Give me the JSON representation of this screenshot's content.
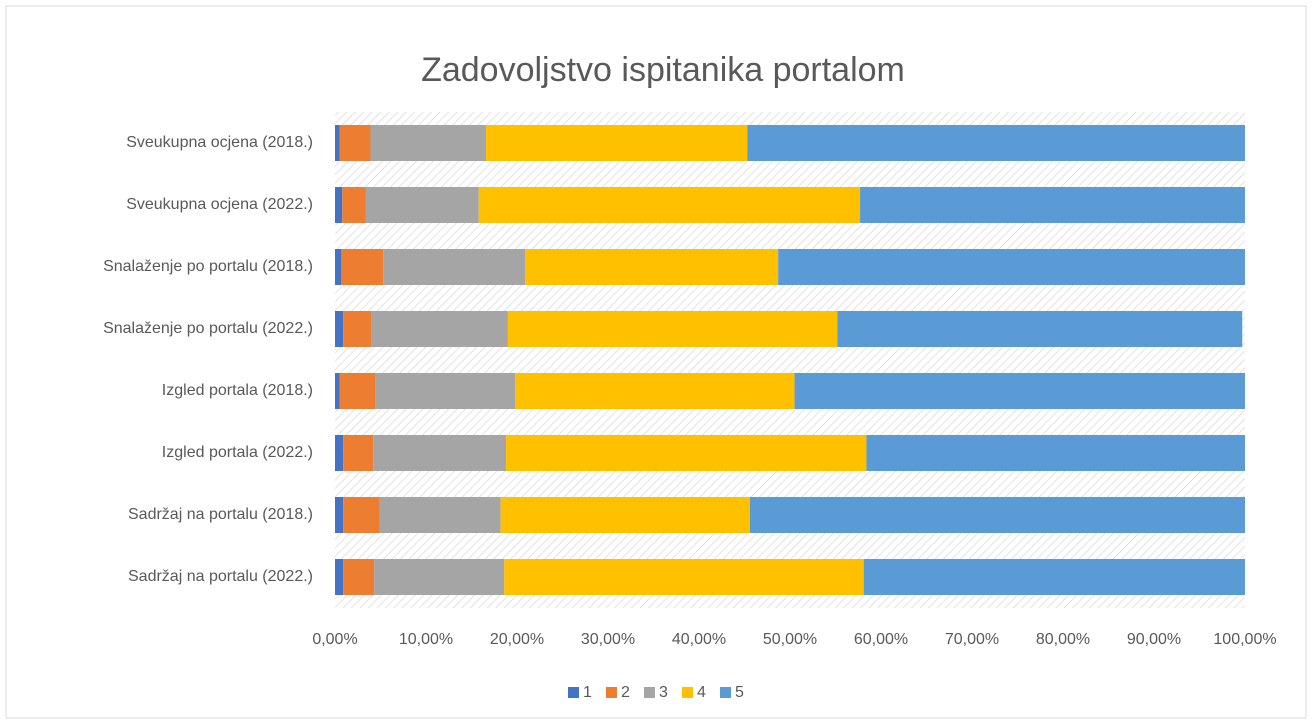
{
  "chart_data": {
    "type": "stacked-barh",
    "title": "Zadovoljstvo ispitanika portalom",
    "categories": [
      "Sveukupna ocjena (2018.)",
      "Sveukupna ocjena (2022.)",
      "Snalaženje po portalu (2018.)",
      "Snalaženje po portalu (2022.)",
      "Izgled portala (2018.)",
      "Izgled portala (2022.)",
      "Sadržaj na portalu (2018.)",
      "Sadržaj na portalu (2022.)"
    ],
    "series": [
      {
        "name": "1",
        "color": "#4472c4",
        "values": [
          0.5,
          0.8,
          0.7,
          0.9,
          0.5,
          0.9,
          0.9,
          0.9
        ]
      },
      {
        "name": "2",
        "color": "#ed7d31",
        "values": [
          3.4,
          2.6,
          4.6,
          3.1,
          3.9,
          3.3,
          4.0,
          3.4
        ]
      },
      {
        "name": "3",
        "color": "#a5a5a5",
        "values": [
          12.7,
          12.4,
          15.6,
          15.0,
          15.4,
          14.6,
          13.3,
          14.3
        ]
      },
      {
        "name": "4",
        "color": "#ffc000",
        "values": [
          28.7,
          41.9,
          27.8,
          36.2,
          30.7,
          39.6,
          27.4,
          39.5
        ]
      },
      {
        "name": "5",
        "color": "#5b9bd5",
        "values": [
          54.7,
          42.3,
          51.3,
          44.5,
          49.5,
          41.6,
          54.4,
          41.9
        ]
      }
    ],
    "xlim": [
      0,
      100
    ],
    "xticks": [
      {
        "value": 0,
        "label": "0,00%"
      },
      {
        "value": 10,
        "label": "10,00%"
      },
      {
        "value": 20,
        "label": "20,00%"
      },
      {
        "value": 30,
        "label": "30,00%"
      },
      {
        "value": 40,
        "label": "40,00%"
      },
      {
        "value": 50,
        "label": "50,00%"
      },
      {
        "value": 60,
        "label": "60,00%"
      },
      {
        "value": 70,
        "label": "70,00%"
      },
      {
        "value": 80,
        "label": "80,00%"
      },
      {
        "value": 90,
        "label": "90,00%"
      },
      {
        "value": 100,
        "label": "100,00%"
      }
    ],
    "legend": "bottom"
  }
}
